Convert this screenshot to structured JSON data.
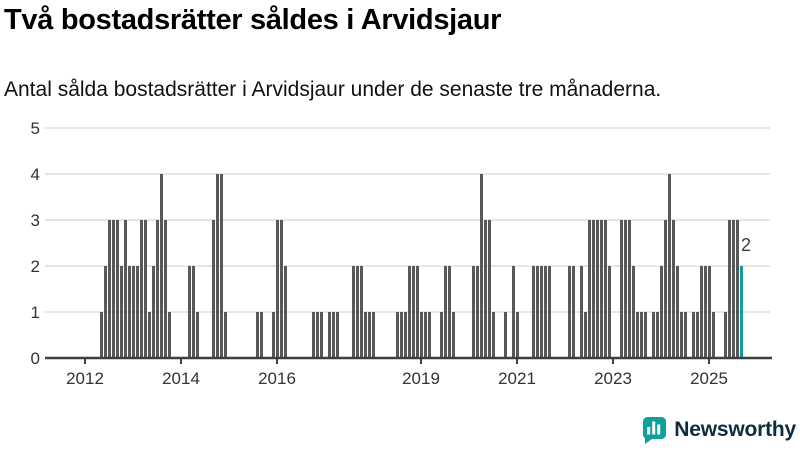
{
  "header": {
    "title": "Två bostadsrätter såldes i Arvidsjaur",
    "subtitle": "Antal sålda bostadsrätter i Arvidsjaur under de senaste tre månaderna."
  },
  "footer": {
    "brand": "Newsworthy",
    "logo_icon": "newsworthy-bars-icon"
  },
  "colors": {
    "bar": "#58595b",
    "highlight": "#0f9f9f",
    "grid": "#e6e6e6",
    "axis": "#3f3f3f",
    "tick_label": "#333333",
    "annotation": "#3f3f3f",
    "annotation_halo": "#ffffff",
    "brand_text": "#0d2d3e",
    "background": "#ffffff"
  },
  "chart_data": {
    "type": "bar",
    "title": "Två bostadsrätter såldes i Arvidsjaur",
    "subtitle": "Antal sålda bostadsrätter i Arvidsjaur under de senaste tre månaderna.",
    "xlabel": "",
    "ylabel": "",
    "ylim": [
      0,
      5
    ],
    "yticks": [
      0,
      1,
      2,
      3,
      4,
      5
    ],
    "xtick_years": [
      2012,
      2014,
      2016,
      2019,
      2021,
      2023,
      2025
    ],
    "grid": true,
    "legend_position": "none",
    "bar_unit": "one month per bar",
    "start_month": "2011-04",
    "end_month": "2025-09",
    "highlight_last_bar": true,
    "last_bar_label": "2",
    "last_bar_month": "2025-09",
    "last_bar_value": 2,
    "values": [
      0,
      0,
      0,
      0,
      0,
      0,
      0,
      0,
      0,
      0,
      0,
      0,
      0,
      1,
      2,
      3,
      3,
      3,
      2,
      3,
      2,
      2,
      2,
      3,
      3,
      1,
      2,
      3,
      4,
      3,
      1,
      0,
      0,
      0,
      0,
      2,
      2,
      1,
      0,
      0,
      0,
      3,
      4,
      4,
      1,
      0,
      0,
      0,
      0,
      0,
      0,
      0,
      1,
      1,
      0,
      0,
      1,
      3,
      3,
      2,
      0,
      0,
      0,
      0,
      0,
      0,
      1,
      1,
      1,
      0,
      1,
      1,
      1,
      0,
      0,
      0,
      2,
      2,
      2,
      1,
      1,
      1,
      0,
      0,
      0,
      0,
      0,
      1,
      1,
      1,
      2,
      2,
      2,
      1,
      1,
      1,
      0,
      0,
      1,
      2,
      2,
      1,
      0,
      0,
      0,
      0,
      2,
      2,
      4,
      3,
      3,
      1,
      0,
      0,
      1,
      0,
      2,
      1,
      0,
      0,
      0,
      2,
      2,
      2,
      2,
      2,
      0,
      0,
      0,
      0,
      2,
      2,
      0,
      2,
      1,
      3,
      3,
      3,
      3,
      3,
      2,
      0,
      0,
      3,
      3,
      3,
      2,
      1,
      1,
      1,
      0,
      1,
      1,
      2,
      3,
      4,
      3,
      2,
      1,
      1,
      0,
      1,
      1,
      2,
      2,
      2,
      1,
      0,
      0,
      1,
      3,
      3,
      3,
      2
    ]
  }
}
